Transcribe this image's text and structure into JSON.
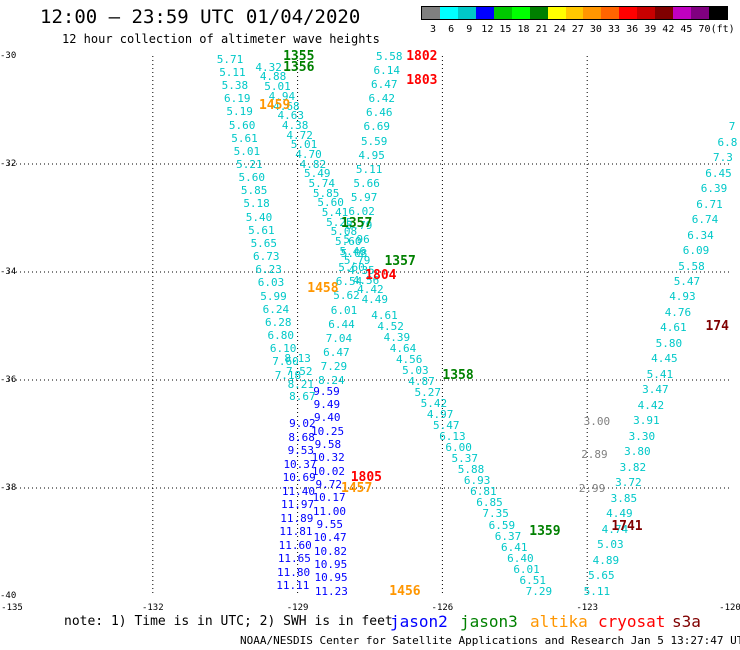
{
  "title": "12:00 – 23:59 UTC 01/04/2020",
  "subtitle": "12 hour collection of altimeter wave heights",
  "colorbar": {
    "labels": [
      "3",
      "6",
      "9",
      "12",
      "15",
      "18",
      "21",
      "24",
      "27",
      "30",
      "33",
      "36",
      "39",
      "42",
      "45",
      "70",
      "(ft)"
    ],
    "colors": [
      "#808080",
      "#00ffff",
      "#00c8c8",
      "#0000ff",
      "#00c800",
      "#00ff00",
      "#008000",
      "#ffff00",
      "#ffc800",
      "#ff9600",
      "#ff6400",
      "#ff0000",
      "#c80000",
      "#800000",
      "#c000c0",
      "#800080",
      "#000000"
    ]
  },
  "axes": {
    "y_labels": [
      "-30",
      "-32",
      "-34",
      "-36",
      "-38",
      "-40"
    ],
    "x_labels": [
      "-135",
      "-132",
      "-129",
      "-126",
      "-123",
      "-120"
    ],
    "x_range": [
      -135,
      -120
    ],
    "y_range": [
      -30,
      -40
    ]
  },
  "passes": [
    {
      "label": "1355",
      "lon": -129.3,
      "lat": -30.0,
      "color": "#008000"
    },
    {
      "label": "1356",
      "lon": -129.3,
      "lat": -30.2,
      "color": "#008000"
    },
    {
      "label": "1802",
      "lon": -126.75,
      "lat": -30.0,
      "color": "#ff0000"
    },
    {
      "label": "1803",
      "lon": -126.75,
      "lat": -30.45,
      "color": "#ff0000"
    },
    {
      "label": "1459",
      "lon": -129.8,
      "lat": -30.9,
      "color": "#ff9600"
    },
    {
      "label": "1357",
      "lon": -128.1,
      "lat": -33.1,
      "color": "#008000"
    },
    {
      "label": "1357",
      "lon": -127.2,
      "lat": -33.8,
      "color": "#008000"
    },
    {
      "label": "1804",
      "lon": -127.6,
      "lat": -34.05,
      "color": "#ff0000"
    },
    {
      "label": "1458",
      "lon": -128.8,
      "lat": -34.3,
      "color": "#ff9600"
    },
    {
      "label": "1358",
      "lon": -126.0,
      "lat": -35.9,
      "color": "#008000"
    },
    {
      "label": "1805",
      "lon": -127.9,
      "lat": -37.8,
      "color": "#ff0000"
    },
    {
      "label": "1457",
      "lon": -128.1,
      "lat": -38.0,
      "color": "#ff9600"
    },
    {
      "label": "1359",
      "lon": -124.2,
      "lat": -38.8,
      "color": "#008000"
    },
    {
      "label": "1741",
      "lon": -122.5,
      "lat": -38.7,
      "color": "#800000"
    },
    {
      "label": "174",
      "lon": -120.55,
      "lat": -35.0,
      "color": "#800000"
    },
    {
      "label": "1456",
      "lon": -127.1,
      "lat": -39.9,
      "color": "#ff9600"
    }
  ],
  "tracks": [
    {
      "color": "#00c8c8",
      "lon0": -130.4,
      "lat0": -30.05,
      "lon1": -129.2,
      "lat1": -35.9,
      "values": [
        "5.71",
        "5.11",
        "5.38",
        "6.19",
        "5.19",
        "5.60",
        "5.61",
        "5.01",
        "5.21",
        "5.60",
        "5.85",
        "5.18",
        "5.40",
        "5.61",
        "5.65",
        "6.73",
        "6.23",
        "6.03",
        "5.99",
        "6.24",
        "6.28",
        "6.80",
        "6.10",
        "7.60",
        "7.18"
      ]
    },
    {
      "color": "#00c8c8",
      "lon0": -129.6,
      "lat0": -30.2,
      "lon1": -127.4,
      "lat1": -34.5,
      "values": [
        "4.32",
        "4.88",
        "5.01",
        "4.94",
        "4.68",
        "4.63",
        "4.38",
        "4.72",
        "5.01",
        "4.70",
        "4.82",
        "5.49",
        "5.74",
        "5.85",
        "5.60",
        "5.41",
        "5.25",
        "5.08",
        "5.60",
        "5.46",
        "5.79",
        "4.35",
        "4.56",
        "4.42",
        "4.49"
      ]
    },
    {
      "color": "#00c8c8",
      "lon0": -127.1,
      "lat0": -30.0,
      "lon1": -128.3,
      "lat1": -36.0,
      "values": [
        "5.58",
        "6.14",
        "6.47",
        "6.42",
        "6.46",
        "6.69",
        "5.59",
        "4.95",
        "5.11",
        "5.66",
        "5.97",
        "6.02",
        "5.79",
        "5.96",
        "5.08",
        "5.60",
        "6.54",
        "5.62",
        "6.01",
        "6.44",
        "7.04",
        "6.47",
        "7.29",
        "8.24"
      ]
    },
    {
      "color": "#00c8c8",
      "lon0": -127.2,
      "lat0": -34.8,
      "lon1": -124.0,
      "lat1": -39.9,
      "values": [
        "4.61",
        "4.52",
        "4.39",
        "4.64",
        "4.56",
        "5.03",
        "4.87",
        "5.27",
        "5.42",
        "4.97",
        "5.47",
        "6.13",
        "6.00",
        "5.37",
        "5.88",
        "6.93",
        "6.81",
        "6.85",
        "7.35",
        "6.59",
        "6.37",
        "6.41",
        "6.40",
        "6.01",
        "6.51",
        "7.29"
      ]
    },
    {
      "color": "#00c8c8",
      "lon0": -122.8,
      "lat0": -39.9,
      "lon1": -120.0,
      "lat1": -31.3,
      "values": [
        "5.11",
        "5.65",
        "4.89",
        "5.03",
        "4.74",
        "4.49",
        "3.85",
        "3.72",
        "3.82",
        "3.80",
        "3.30",
        "3.91",
        "4.42",
        "3.47",
        "5.41",
        "4.45",
        "5.80",
        "4.61",
        "4.76",
        "4.93",
        "5.47",
        "5.58",
        "6.09",
        "6.34",
        "6.74",
        "6.71",
        "6.39",
        "6.45",
        "7.3",
        "6.8",
        "7"
      ]
    },
    {
      "color": "#808080",
      "lon0": -122.8,
      "lat0": -36.75,
      "lon1": -122.9,
      "lat1": -38.0,
      "values": [
        "3.00",
        "2.89",
        "2.99"
      ]
    },
    {
      "color": "#0000ff",
      "lon0": -128.4,
      "lat0": -36.2,
      "lon1": -128.3,
      "lat1": -39.9,
      "values": [
        "9.59",
        "9.49",
        "9.40",
        "10.25",
        "9.58",
        "10.32",
        "10.02",
        "9.72",
        "10.17",
        "11.00",
        "9.55",
        "10.47",
        "10.82",
        "10.95",
        "10.95",
        "11.23"
      ]
    },
    {
      "color": "#0000ff",
      "lon0": -128.9,
      "lat0": -36.8,
      "lon1": -129.1,
      "lat1": -39.8,
      "values": [
        "9.02",
        "8.68",
        "9.53",
        "10.37",
        "10.69",
        "11.40",
        "11.97",
        "11.89",
        "11.81",
        "11.60",
        "11.65",
        "11.80",
        "11.11"
      ]
    },
    {
      "color": "#00c8c8",
      "lon0": -129.0,
      "lat0": -35.6,
      "lon1": -128.9,
      "lat1": -36.3,
      "values": [
        "8.13",
        "7.52",
        "8.21",
        "8.67"
      ]
    }
  ],
  "note": "note: 1) Time is in UTC; 2) SWH is in feet",
  "satellites": [
    {
      "name": "jason2",
      "color": "#0000ff"
    },
    {
      "name": "jason3",
      "color": "#008000"
    },
    {
      "name": "altika",
      "color": "#ff9600"
    },
    {
      "name": "cryosat",
      "color": "#ff0000"
    },
    {
      "name": "s3a",
      "color": "#800000"
    }
  ],
  "footer": "NOAA/NESDIS Center for Satellite Applications and Research   Jan  5 13:27:47 UTC 2020"
}
